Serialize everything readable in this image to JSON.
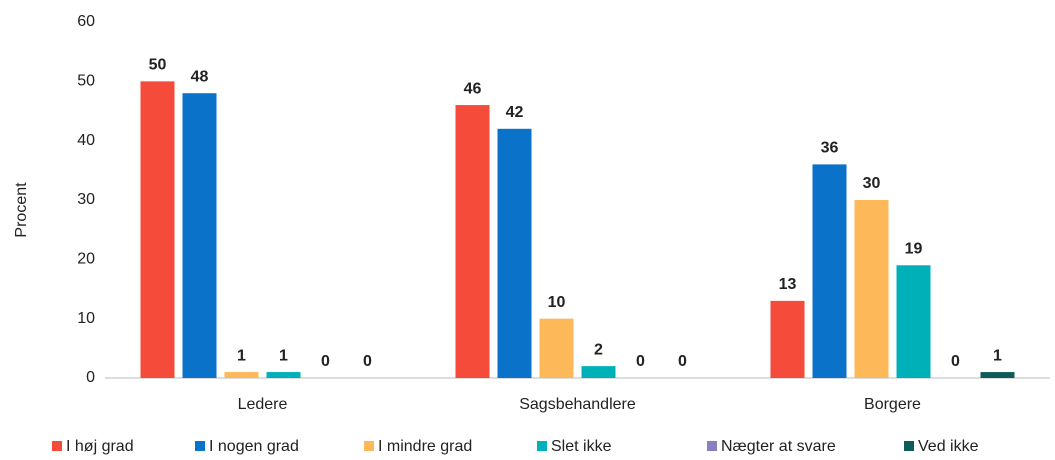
{
  "chart_data": {
    "type": "bar",
    "y_label": "Procent",
    "categories": [
      "Ledere",
      "Sagsbehandlere",
      "Borgere"
    ],
    "series": [
      {
        "name": "I høj grad",
        "color": "#f44b3a",
        "values": [
          50,
          46,
          13
        ]
      },
      {
        "name": "I nogen grad",
        "color": "#0b72c9",
        "values": [
          48,
          42,
          36
        ]
      },
      {
        "name": "I mindre grad",
        "color": "#fdb85a",
        "values": [
          1,
          10,
          30
        ]
      },
      {
        "name": "Slet ikke",
        "color": "#00b0b9",
        "values": [
          1,
          2,
          19
        ]
      },
      {
        "name": "Nægter at svare",
        "color": "#8c7fbf",
        "values": [
          0,
          0,
          0
        ]
      },
      {
        "name": "Ved ikke",
        "color": "#0e5c5a",
        "values": [
          0,
          0,
          1
        ]
      }
    ],
    "ylim": [
      0,
      60
    ],
    "yticks": [
      0,
      10,
      20,
      30,
      40,
      50,
      60
    ],
    "legend": "bottom"
  }
}
